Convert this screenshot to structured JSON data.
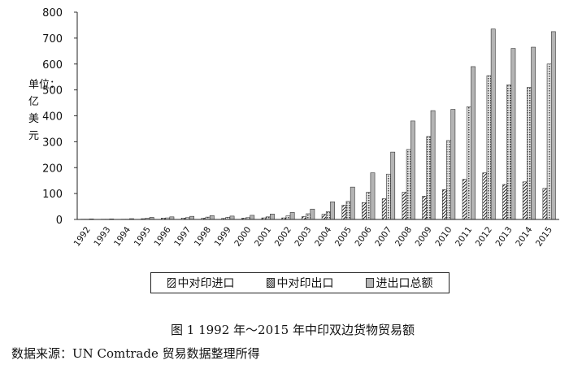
{
  "chart_data": {
    "type": "bar",
    "categories": [
      "1992",
      "1993",
      "1994",
      "1995",
      "1996",
      "1997",
      "1998",
      "1999",
      "2000",
      "2001",
      "2002",
      "2003",
      "2004",
      "2005",
      "2006",
      "2007",
      "2008",
      "2009",
      "2010",
      "2011",
      "2012",
      "2013",
      "2014",
      "2015"
    ],
    "series": [
      {
        "name": "中对印进口",
        "values": [
          1,
          1,
          1,
          3,
          5,
          5,
          5,
          4,
          5,
          6,
          6,
          11,
          20,
          55,
          65,
          80,
          105,
          90,
          115,
          155,
          180,
          135,
          145,
          120
        ]
      },
      {
        "name": "中对印出口",
        "values": [
          1,
          1,
          1,
          5,
          6,
          7,
          9,
          8,
          7,
          10,
          14,
          22,
          30,
          70,
          105,
          175,
          270,
          320,
          305,
          435,
          555,
          520,
          510,
          600
        ]
      },
      {
        "name": "进出口总额",
        "values": [
          2,
          2,
          3,
          8,
          10,
          12,
          15,
          13,
          16,
          21,
          27,
          40,
          68,
          125,
          180,
          260,
          380,
          420,
          425,
          590,
          735,
          660,
          665,
          725
        ]
      }
    ],
    "ylim": [
      0,
      800
    ],
    "yticks": [
      "0",
      "100",
      "200",
      "300",
      "400",
      "500",
      "600",
      "700",
      "800"
    ],
    "ylabel": "单位：亿美元",
    "legend_position": "bottom",
    "grid": false
  },
  "colors": {
    "import_fill": "#ffffff",
    "export_fill": "#cfcfcf",
    "total_fill": "#b4b4b4",
    "bar_stroke": "#333333"
  },
  "caption": "图 1  1992 年～2015 年中印双边货物贸易额",
  "source": "数据来源：UN Comtrade 贸易数据整理所得"
}
